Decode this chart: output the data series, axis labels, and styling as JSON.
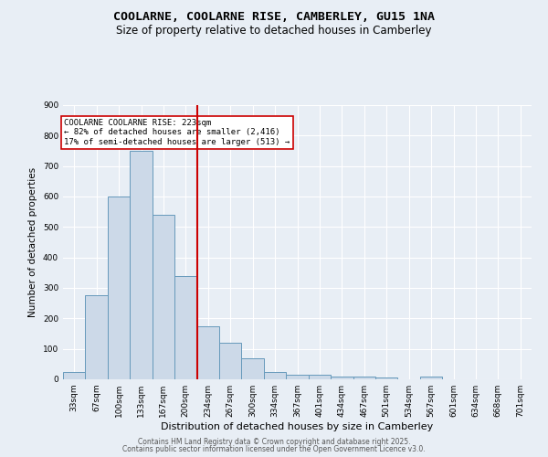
{
  "title": "COOLARNE, COOLARNE RISE, CAMBERLEY, GU15 1NA",
  "subtitle": "Size of property relative to detached houses in Camberley",
  "xlabel": "Distribution of detached houses by size in Camberley",
  "ylabel": "Number of detached properties",
  "bar_labels": [
    "33sqm",
    "67sqm",
    "100sqm",
    "133sqm",
    "167sqm",
    "200sqm",
    "234sqm",
    "267sqm",
    "300sqm",
    "334sqm",
    "367sqm",
    "401sqm",
    "434sqm",
    "467sqm",
    "501sqm",
    "534sqm",
    "567sqm",
    "601sqm",
    "634sqm",
    "668sqm",
    "701sqm"
  ],
  "bar_heights": [
    25,
    275,
    600,
    750,
    540,
    340,
    175,
    120,
    70,
    25,
    15,
    15,
    10,
    10,
    5,
    0,
    10,
    0,
    0,
    0,
    0
  ],
  "bar_color": "#ccd9e8",
  "bar_edgecolor": "#6699bb",
  "vline_color": "#cc0000",
  "annotation_lines": [
    "COOLARNE COOLARNE RISE: 223sqm",
    "← 82% of detached houses are smaller (2,416)",
    "17% of semi-detached houses are larger (513) →"
  ],
  "annotation_box_edgecolor": "#cc0000",
  "annotation_box_facecolor": "#ffffff",
  "ylim": [
    0,
    900
  ],
  "yticks": [
    0,
    100,
    200,
    300,
    400,
    500,
    600,
    700,
    800,
    900
  ],
  "background_color": "#e8eef5",
  "grid_color": "#ffffff",
  "footer_line1": "Contains HM Land Registry data © Crown copyright and database right 2025.",
  "footer_line2": "Contains public sector information licensed under the Open Government Licence v3.0.",
  "title_fontsize": 9.5,
  "subtitle_fontsize": 8.5,
  "ylabel_fontsize": 7.5,
  "xlabel_fontsize": 8,
  "tick_fontsize": 6.5,
  "annotation_fontsize": 6.5,
  "footer_fontsize": 5.5
}
